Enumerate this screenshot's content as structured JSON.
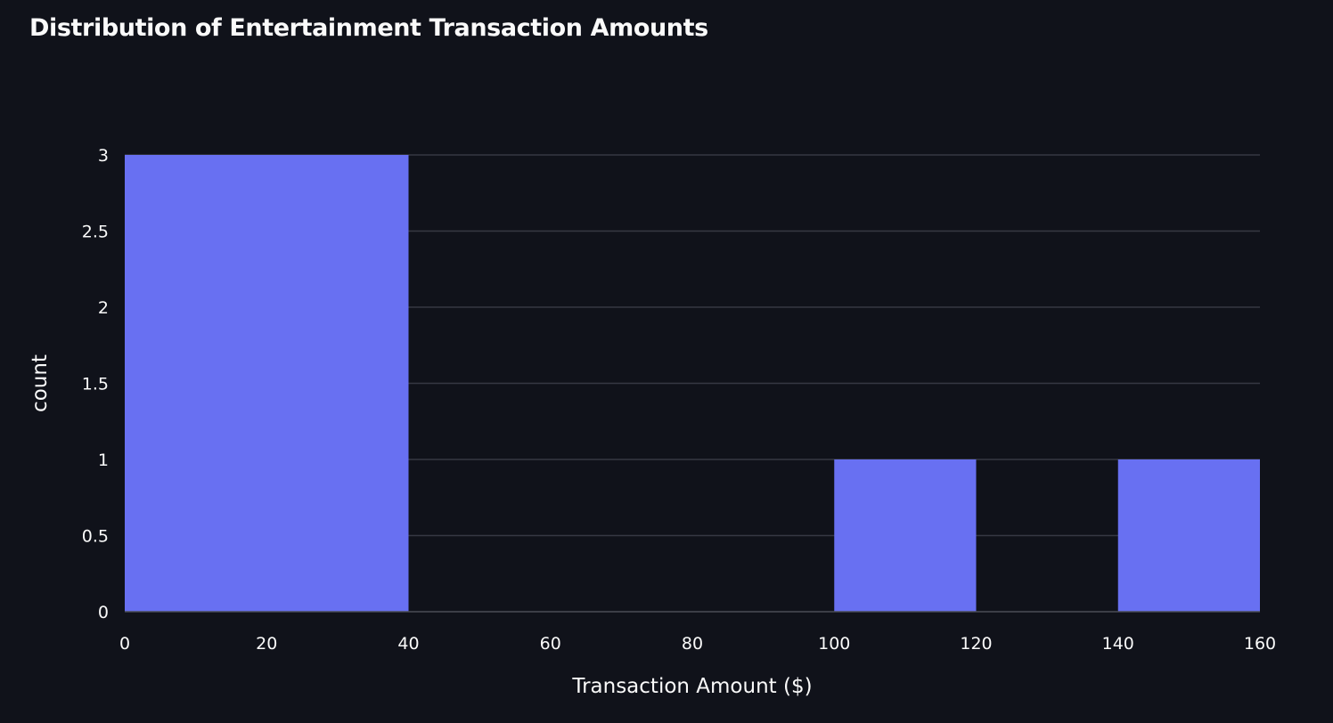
{
  "title": "Distribution of Entertainment Transaction Amounts",
  "colors": {
    "background": "#10121a",
    "bar": "#6870f2",
    "grid": "#363843",
    "text": "#fafafa"
  },
  "chart_data": {
    "type": "bar",
    "subtype": "histogram",
    "title": "Distribution of Entertainment Transaction Amounts",
    "xlabel": "Transaction Amount ($)",
    "ylabel": "count",
    "xlim": [
      0,
      160
    ],
    "ylim": [
      0,
      3
    ],
    "x_ticks": [
      0,
      20,
      40,
      60,
      80,
      100,
      120,
      140,
      160
    ],
    "y_ticks": [
      0,
      0.5,
      1,
      1.5,
      2,
      2.5,
      3
    ],
    "bins": [
      {
        "x0": 0,
        "x1": 40,
        "count": 3
      },
      {
        "x0": 40,
        "x1": 100,
        "count": 0
      },
      {
        "x0": 100,
        "x1": 120,
        "count": 1
      },
      {
        "x0": 120,
        "x1": 140,
        "count": 0
      },
      {
        "x0": 140,
        "x1": 160,
        "count": 1
      }
    ],
    "grid": true,
    "legend": false
  }
}
